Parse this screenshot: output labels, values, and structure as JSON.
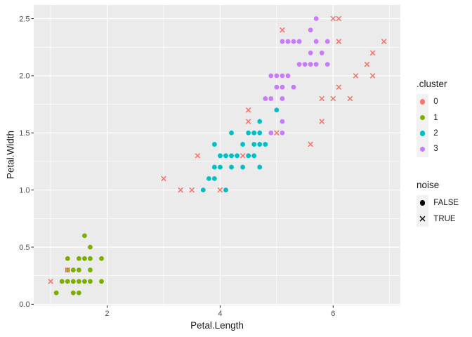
{
  "figure": {
    "background": "#FFFFFF",
    "panel_background": "#EBEBEB",
    "grid_color": "#FFFFFF",
    "tick_color": "#333333",
    "tick_label_color": "#4D4D4D",
    "axis_title_color": "#1A1A1A"
  },
  "chart_data": {
    "type": "scatter",
    "title": "",
    "xlabel": "Petal.Length",
    "ylabel": "Petal.Width",
    "xlim": [
      0.7,
      7.19
    ],
    "ylim": [
      -0.01,
      2.62
    ],
    "grid": true,
    "legend_position": "right",
    "x_ticks": [
      {
        "v": 2,
        "label": "2"
      },
      {
        "v": 4,
        "label": "4"
      },
      {
        "v": 6,
        "label": "6"
      }
    ],
    "y_ticks": [
      {
        "v": 0,
        "label": "0.0"
      },
      {
        "v": 0.5,
        "label": "0.5"
      },
      {
        "v": 1,
        "label": "1.0"
      },
      {
        "v": 1.5,
        "label": "1.5"
      },
      {
        "v": 2,
        "label": "2.0"
      },
      {
        "v": 2.5,
        "label": "2.5"
      }
    ],
    "x_minor": [
      1,
      3,
      5,
      7
    ],
    "y_minor": [
      0.25,
      0.75,
      1.25,
      1.75,
      2.25
    ],
    "palette": {
      "0": "#F8766D",
      "1": "#7CAE00",
      "2": "#00BFC4",
      "3": "#C77CFF"
    },
    "marker": {
      "circle_radius": 3.4,
      "x_half_size": 3.3,
      "x_stroke_width": 1.6
    },
    "series": [
      {
        "name": "cluster 1, noise FALSE",
        "cluster": "1",
        "shape": "circle",
        "points": [
          [
            1.1,
            0.1
          ],
          [
            1.4,
            0.1
          ],
          [
            1.5,
            0.1
          ],
          [
            1.2,
            0.2
          ],
          [
            1.3,
            0.2
          ],
          [
            1.4,
            0.2
          ],
          [
            1.5,
            0.2
          ],
          [
            1.6,
            0.2
          ],
          [
            1.7,
            0.2
          ],
          [
            1.9,
            0.2
          ],
          [
            1.3,
            0.3
          ],
          [
            1.4,
            0.3
          ],
          [
            1.5,
            0.3
          ],
          [
            1.7,
            0.3
          ],
          [
            1.3,
            0.4
          ],
          [
            1.5,
            0.4
          ],
          [
            1.6,
            0.4
          ],
          [
            1.7,
            0.4
          ],
          [
            1.9,
            0.4
          ],
          [
            1.7,
            0.5
          ],
          [
            1.6,
            0.6
          ]
        ]
      },
      {
        "name": "cluster 2, noise FALSE",
        "cluster": "2",
        "shape": "circle",
        "points": [
          [
            3.7,
            1.0
          ],
          [
            4.1,
            1.0
          ],
          [
            3.8,
            1.1
          ],
          [
            3.9,
            1.1
          ],
          [
            3.9,
            1.2
          ],
          [
            4.0,
            1.2
          ],
          [
            4.2,
            1.2
          ],
          [
            4.4,
            1.2
          ],
          [
            4.7,
            1.2
          ],
          [
            4.0,
            1.3
          ],
          [
            4.1,
            1.3
          ],
          [
            4.2,
            1.3
          ],
          [
            4.3,
            1.3
          ],
          [
            4.5,
            1.3
          ],
          [
            4.6,
            1.3
          ],
          [
            3.9,
            1.4
          ],
          [
            4.4,
            1.4
          ],
          [
            4.6,
            1.4
          ],
          [
            4.7,
            1.4
          ],
          [
            4.8,
            1.4
          ],
          [
            4.2,
            1.5
          ],
          [
            4.5,
            1.5
          ],
          [
            4.6,
            1.5
          ],
          [
            4.7,
            1.5
          ],
          [
            4.7,
            1.6
          ],
          [
            5.0,
            1.7
          ]
        ]
      },
      {
        "name": "cluster 3, noise FALSE",
        "cluster": "3",
        "shape": "circle",
        "points": [
          [
            4.9,
            1.5
          ],
          [
            5.1,
            1.5
          ],
          [
            5.1,
            1.6
          ],
          [
            4.8,
            1.8
          ],
          [
            4.9,
            1.8
          ],
          [
            5.1,
            1.8
          ],
          [
            5.0,
            1.9
          ],
          [
            5.1,
            1.9
          ],
          [
            5.3,
            1.9
          ],
          [
            4.9,
            2.0
          ],
          [
            5.0,
            2.0
          ],
          [
            5.1,
            2.0
          ],
          [
            5.2,
            2.0
          ],
          [
            5.4,
            2.1
          ],
          [
            5.5,
            2.1
          ],
          [
            5.6,
            2.1
          ],
          [
            5.7,
            2.1
          ],
          [
            5.9,
            2.1
          ],
          [
            5.6,
            2.2
          ],
          [
            5.8,
            2.2
          ],
          [
            5.1,
            2.3
          ],
          [
            5.2,
            2.3
          ],
          [
            5.3,
            2.3
          ],
          [
            5.4,
            2.3
          ],
          [
            5.7,
            2.3
          ],
          [
            5.9,
            2.3
          ],
          [
            5.6,
            2.4
          ],
          [
            5.7,
            2.5
          ]
        ]
      },
      {
        "name": "cluster 0, noise TRUE",
        "cluster": "0",
        "shape": "x",
        "points": [
          [
            1.0,
            0.2
          ],
          [
            1.3,
            0.3
          ],
          [
            3.0,
            1.1
          ],
          [
            3.3,
            1.0
          ],
          [
            3.5,
            1.0
          ],
          [
            3.6,
            1.3
          ],
          [
            4.0,
            1.0
          ],
          [
            4.4,
            1.3
          ],
          [
            4.5,
            1.6
          ],
          [
            4.5,
            1.7
          ],
          [
            5.0,
            1.5
          ],
          [
            5.6,
            1.4
          ],
          [
            5.8,
            1.6
          ],
          [
            5.8,
            1.8
          ],
          [
            6.0,
            1.8
          ],
          [
            6.3,
            1.8
          ],
          [
            6.1,
            1.9
          ],
          [
            6.4,
            2.0
          ],
          [
            6.7,
            2.0
          ],
          [
            6.6,
            2.1
          ],
          [
            6.7,
            2.2
          ],
          [
            6.1,
            2.3
          ],
          [
            6.9,
            2.3
          ],
          [
            5.1,
            2.4
          ],
          [
            6.0,
            2.5
          ],
          [
            6.1,
            2.5
          ]
        ]
      }
    ]
  },
  "legend": {
    "cluster": {
      "title": ".cluster",
      "items": [
        {
          "label": "0",
          "color": "#F8766D"
        },
        {
          "label": "1",
          "color": "#7CAE00"
        },
        {
          "label": "2",
          "color": "#00BFC4"
        },
        {
          "label": "3",
          "color": "#C77CFF"
        }
      ]
    },
    "noise": {
      "title": "noise",
      "color": "#000000",
      "items": [
        {
          "label": "FALSE",
          "shape": "circle"
        },
        {
          "label": "TRUE",
          "shape": "x"
        }
      ]
    }
  }
}
